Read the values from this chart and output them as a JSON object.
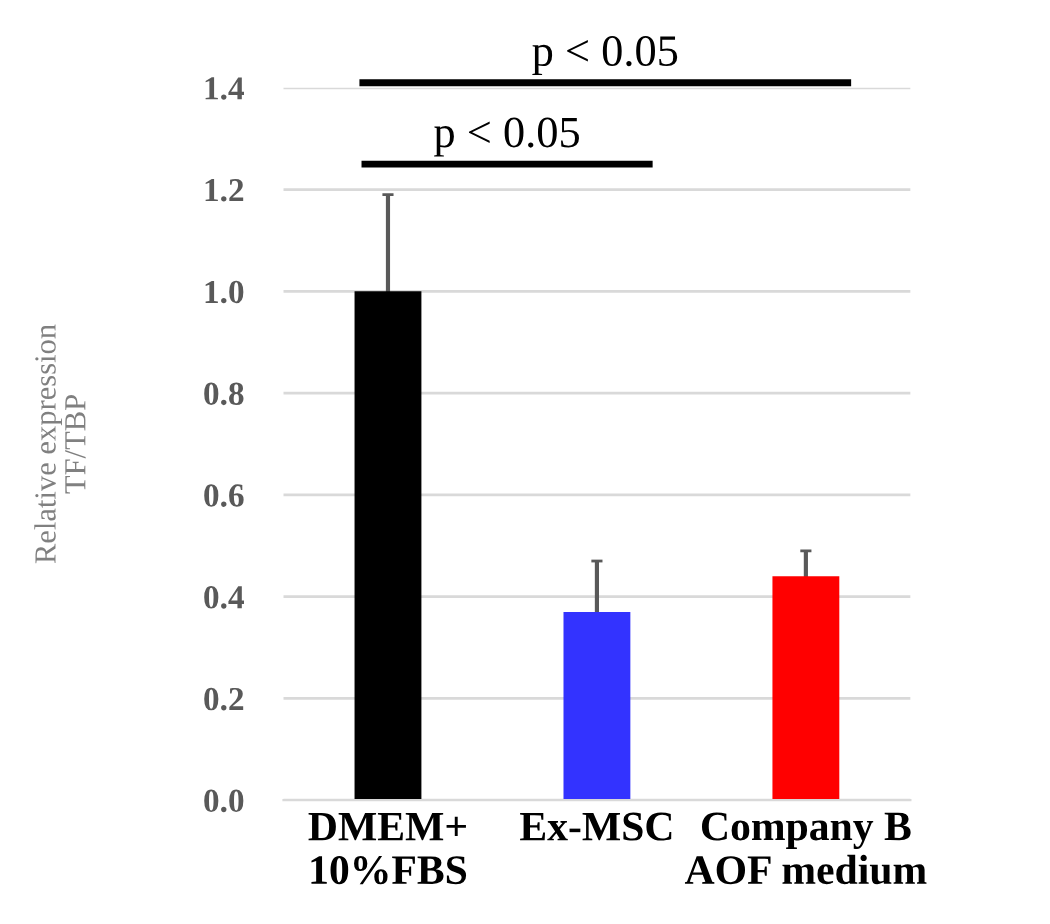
{
  "chart_data": {
    "type": "bar",
    "ylabel": "Relative expression\nTF/TBP",
    "categories": [
      "DMEM+\n10%FBS",
      "Ex-MSC",
      "Company B\nAOF medium"
    ],
    "values": [
      1.0,
      0.37,
      0.44
    ],
    "colors": [
      "#000000",
      "#3333ff",
      "#ff0000"
    ],
    "errors": [
      0.19,
      0.1,
      0.05
    ],
    "ylim": [
      0,
      1.4
    ],
    "yticks": [
      {
        "value": 0,
        "label": "0.0"
      },
      {
        "value": 0.2,
        "label": "0.2"
      },
      {
        "value": 0.4,
        "label": "0.4"
      },
      {
        "value": 0.6,
        "label": "0.6"
      },
      {
        "value": 0.8,
        "label": "0.8"
      },
      {
        "value": 1.0,
        "label": "1.0"
      },
      {
        "value": 1.2,
        "label": "1.2"
      },
      {
        "value": 1.4,
        "label": "1.4"
      }
    ],
    "grid": "y",
    "annotations": [
      "p < 0.05",
      "p < 0.05"
    ]
  }
}
